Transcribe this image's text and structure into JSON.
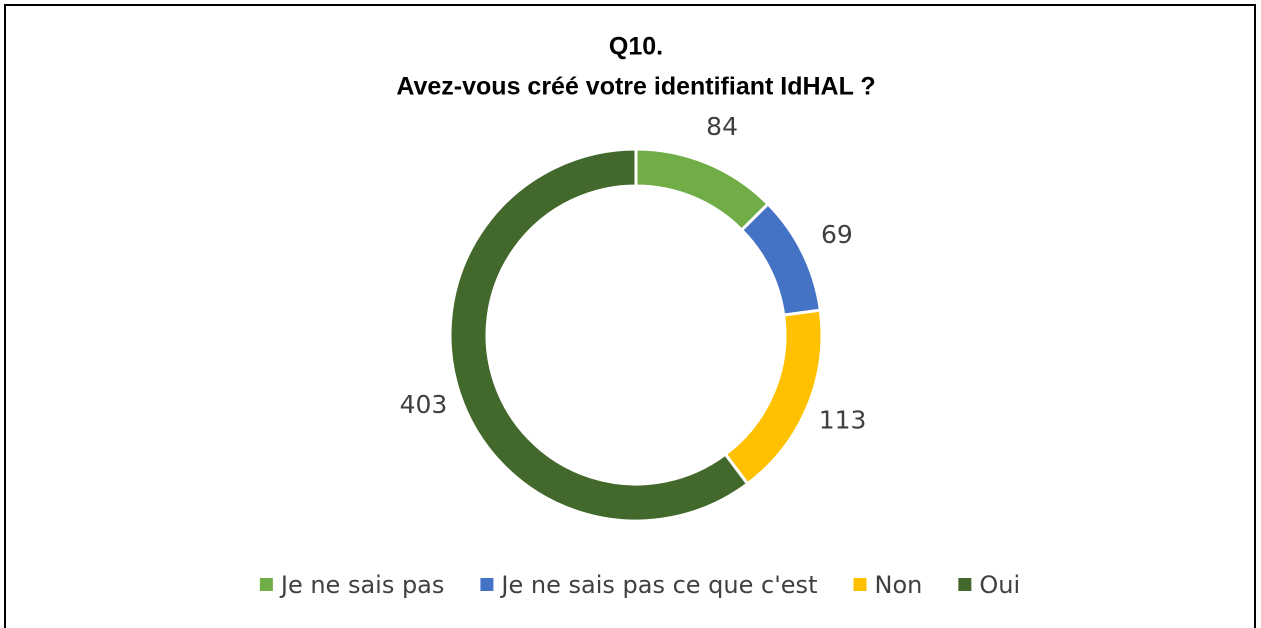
{
  "chart_data": {
    "type": "donut",
    "title": [
      "Q10.",
      "Avez-vous créé votre identifiant IdHAL ?"
    ],
    "categories": [
      "Je ne sais pas",
      "Je ne sais pas ce que c'est",
      "Non",
      "Oui"
    ],
    "values": [
      84,
      69,
      113,
      403
    ],
    "colors": [
      "#70ad47",
      "#4472c4",
      "#ffc000",
      "#43682b"
    ],
    "legend": "bottom"
  }
}
